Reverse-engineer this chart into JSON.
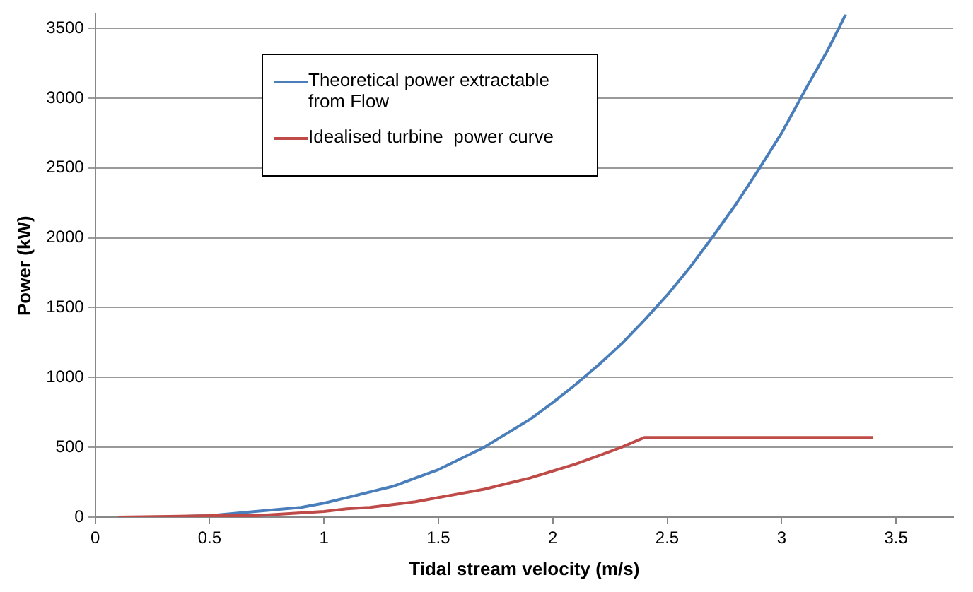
{
  "chart_data": {
    "type": "line",
    "xlabel": "Tidal stream velocity (m/s)",
    "ylabel": "Power (kW)",
    "xlim": [
      0,
      3.75
    ],
    "xticks": [
      0,
      0.5,
      1,
      1.5,
      2,
      2.5,
      3,
      3.5
    ],
    "ylim": [
      0,
      3600
    ],
    "yticks": [
      0,
      500,
      1000,
      1500,
      2000,
      2500,
      3000,
      3500
    ],
    "grid": "y",
    "legend": "top left",
    "marker": "none",
    "line_style": "solid",
    "series": [
      {
        "name": "Theoretical power extractable from Flow",
        "color": "#4a7ebb",
        "x": [
          0.1,
          0.3,
          0.5,
          0.7,
          0.9,
          1,
          1.1,
          1.2,
          1.3,
          1.4,
          1.5,
          1.6,
          1.7,
          1.8,
          1.9,
          2,
          2.1,
          2.2,
          2.3,
          2.4,
          2.5,
          2.6,
          2.7,
          2.8,
          2.9,
          3,
          3.1,
          3.2,
          3.25,
          3.28
        ],
        "values": [
          0,
          0,
          10,
          40,
          70,
          100,
          140,
          180,
          220,
          280,
          340,
          420,
          500,
          600,
          700,
          820,
          950,
          1090,
          1240,
          1410,
          1590,
          1790,
          2010,
          2240,
          2490,
          2750,
          3050,
          3340,
          3500,
          3600
        ]
      },
      {
        "name": "Idealised turbine  power curve",
        "color": "#be4b48",
        "x": [
          0.1,
          0.5,
          0.7,
          0.9,
          1,
          1.1,
          1.2,
          1.3,
          1.4,
          1.5,
          1.6,
          1.7,
          1.8,
          1.9,
          2,
          2.1,
          2.2,
          2.3,
          2.4,
          3.4
        ],
        "values": [
          0,
          10,
          10,
          30,
          40,
          60,
          70,
          90,
          110,
          140,
          170,
          200,
          240,
          280,
          330,
          380,
          440,
          500,
          570,
          570
        ]
      }
    ]
  }
}
